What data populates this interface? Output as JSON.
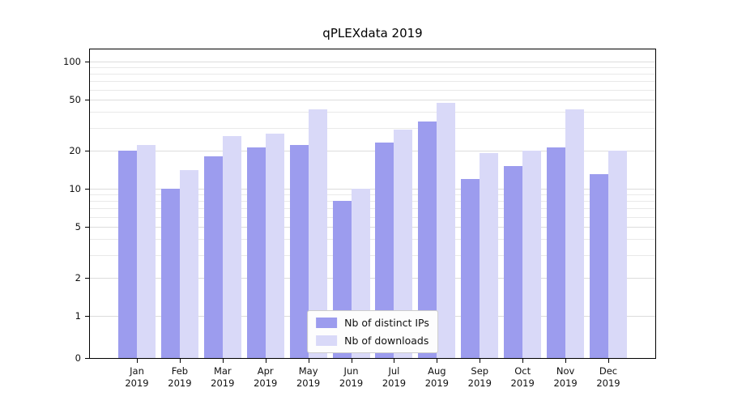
{
  "chart_data": {
    "type": "bar",
    "title": "qPLEXdata 2019",
    "categories": [
      "Jan",
      "Feb",
      "Mar",
      "Apr",
      "May",
      "Jun",
      "Jul",
      "Aug",
      "Sep",
      "Oct",
      "Nov",
      "Dec"
    ],
    "category_year": "2019",
    "series": [
      {
        "name": "Nb of distinct IPs",
        "color": "#9c9cee",
        "values": [
          20,
          10,
          18,
          21,
          22,
          8,
          23,
          34,
          12,
          15,
          21,
          13
        ]
      },
      {
        "name": "Nb of downloads",
        "color": "#d9d9f8",
        "values": [
          22,
          14,
          26,
          27,
          42,
          10,
          29,
          47,
          19,
          20,
          42,
          20
        ]
      }
    ],
    "yscale": "symlog",
    "yticks": [
      0,
      1,
      2,
      5,
      10,
      20,
      50,
      100
    ],
    "minor_yticks": [
      3,
      4,
      6,
      7,
      8,
      9,
      30,
      40,
      60,
      70,
      80,
      90
    ],
    "ylim": [
      0,
      124
    ],
    "grid": true,
    "legend_position": "lower center"
  },
  "colors": {
    "grid_major": "#dcdcdc",
    "grid_minor": "#e9e9e9",
    "axis": "#000000",
    "tick_label": "#111111",
    "legend_border": "#cccccc",
    "legend_bg": "#fdfdfd"
  }
}
